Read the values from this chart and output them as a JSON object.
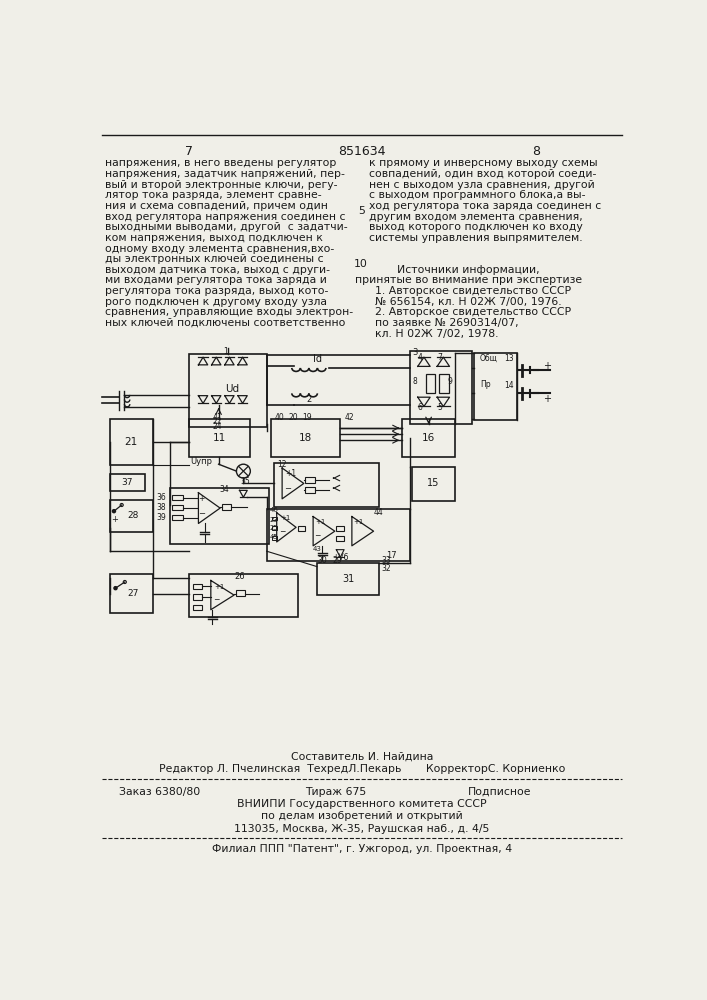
{
  "page_number_left": "7",
  "page_number_center": "851634",
  "page_number_right": "8",
  "background_color": "#f0efe8",
  "text_color": "#1a1a1a",
  "left_column_lines": [
    "напряжения, в него введены регулятор",
    "напряжения, задатчик напряжений, пер-",
    "вый и второй электронные ключи, регу-",
    "лятор тока разряда, элемент сравне-",
    "ния и схема совпадений, причем один",
    "вход регулятора напряжения соединен с",
    "выходными выводами, другой  с задатчи-",
    "ком напряжения, выход подключен к",
    "одному входу элемента сравнения,вхо-",
    "ды электронных ключей соединены с",
    "выходом датчика тока, выход с други-",
    "ми входами регулятора тока заряда и",
    "регулятора тока разряда, выход кото-",
    "рого подключен к другому входу узла",
    "сравнения, управляющие входы электрон-",
    "ных ключей подключены соответственно"
  ],
  "right_column_lines": [
    "к прямому и инверсному выходу схемы",
    "совпадений, один вход которой соеди-",
    "нен с выходом узла сравнения, другой",
    "с выходом программного блока,а вы-",
    "ход регулятора тока заряда соединен с",
    "другим входом элемента сравнения,",
    "выход которого подключен ко входу",
    "системы управления выпрямителем."
  ],
  "sources_title": "Источники информации,",
  "sources_subtitle": "принятые во внимание при экспертизе",
  "source1": "1. Авторское свидетельство СССР",
  "source1b": "№ 656154, кл. Н 02Ж 7/00, 1976.",
  "source2": "2. Авторское свидетельство СССР",
  "source2b": "по заявке № 2690314/07,",
  "source2c": "кл. Н 02Ж 7/02, 1978.",
  "line5_number": "5",
  "line10_number": "10",
  "footer_composer": "Составитель И. Найдина",
  "footer_editor": "Редактор Л. Пчелинская  ТехредЛ.Пекарь       КорректорС. Корниенко",
  "footer_order": "Заказ 6380/80",
  "footer_print": "Тираж 675",
  "footer_type": "Подписное",
  "footer_org1": "ВНИИПИ Государственного комитета СССР",
  "footer_org2": "по делам изобретений и открытий",
  "footer_address": "113035, Москва, Ж-35, Раушская наб., д. 4/5",
  "footer_branch": "Филиал ППП \"Патент\", г. Ужгород, ул. Проектная, 4"
}
